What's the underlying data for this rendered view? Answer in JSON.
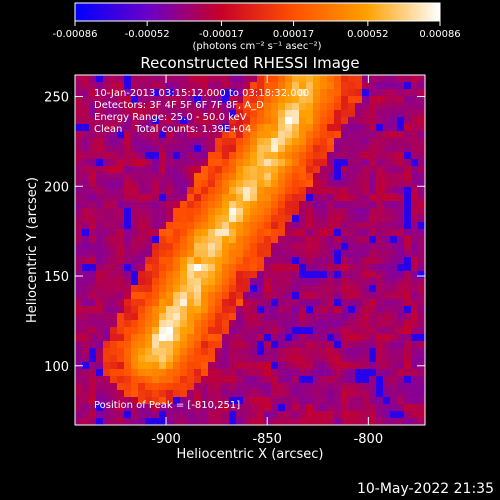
{
  "chart_data": {
    "type": "heatmap",
    "title": "Reconstructed RHESSI Image",
    "xlabel": "Heliocentric X (arcsec)",
    "ylabel": "Heliocentric Y (arcsec)",
    "xlim": [
      -945,
      -772
    ],
    "ylim": [
      67,
      262
    ],
    "xticks": [
      -900,
      -850,
      -800
    ],
    "yticks": [
      100,
      150,
      200,
      250
    ],
    "xticklabels": [
      "-900",
      "-850",
      "-800"
    ],
    "yticklabels": [
      "100",
      "150",
      "200",
      "250"
    ],
    "colorbar": {
      "range": [
        -0.00086,
        0.00086
      ],
      "ticks": [
        -0.00086,
        -0.00052,
        -0.00017,
        0.00017,
        0.00052,
        0.00086
      ],
      "ticklabels": [
        "-0.00086",
        "-0.00052",
        "-0.00017",
        "0.00017",
        "0.00052",
        "0.00086"
      ],
      "unit_label": "(photons cm⁻² s⁻¹ asec⁻²)",
      "colors": [
        "#0000ff",
        "#6a00c8",
        "#c80028",
        "#ff5000",
        "#ffa000",
        "#ffffff"
      ]
    },
    "annotations": [
      "10-Jan-2013 03:15:12.000 to 03:18:32.000",
      "Detectors: 3F 4F 5F 6F 7F 8F, A_D",
      "Energy Range: 25.0 - 50.0 keV",
      "Clean    Total counts: 1.39E+04"
    ],
    "peak_label": "Position of Peak = [-810,251]",
    "peak_position": [
      -810,
      251
    ],
    "emission_band": {
      "description_points": [
        [
          -905,
          105
        ],
        [
          -880,
          160
        ],
        [
          -855,
          205
        ],
        [
          -830,
          255
        ]
      ],
      "peak_value": 0.00086
    }
  },
  "footer": {
    "datestamp": "10-May-2022 21:35"
  }
}
